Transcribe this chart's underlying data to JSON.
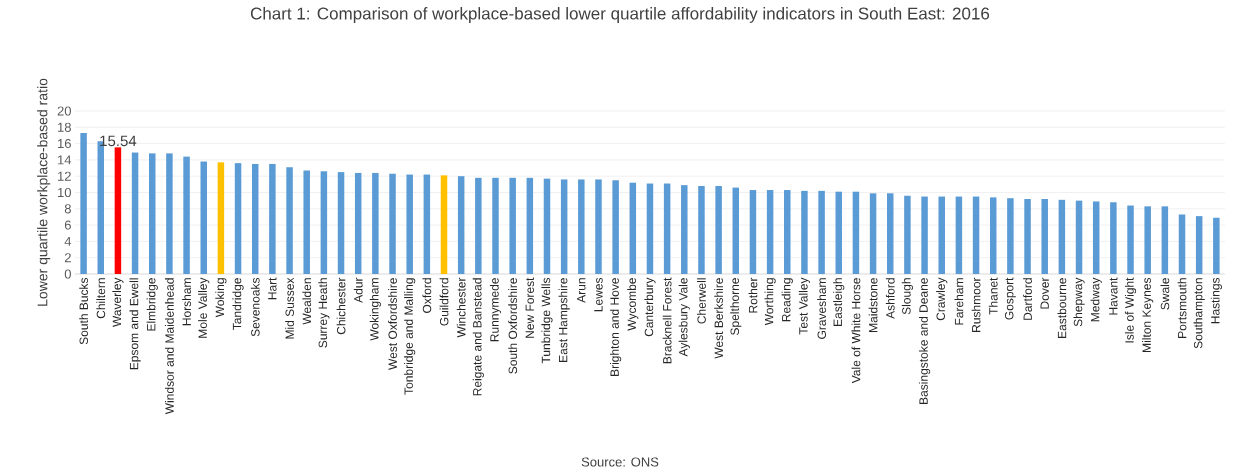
{
  "chart_data": {
    "type": "bar",
    "title": "Chart 1: Comparison of workplace-based lower quartile affordability indicators in South East: 2016",
    "ylabel": "Lower quartile workplace-based ratio",
    "categories": [
      "South Bucks",
      "Chiltern",
      "Waverley",
      "Epsom and Ewell",
      "Elmbridge",
      "Windsor and Maidenhead",
      "Horsham",
      "Mole Valley",
      "Woking",
      "Tandridge",
      "Sevenoaks",
      "Hart",
      "Mid Sussex",
      "Wealden",
      "Surrey Heath",
      "Chichester",
      "Adur",
      "Wokingham",
      "West Oxfordshire",
      "Tonbridge and Malling",
      "Oxford",
      "Guildford",
      "Winchester",
      "Reigate and Banstead",
      "Runnymede",
      "South Oxfordshire",
      "New Forest",
      "Tunbridge Wells",
      "East Hampshire",
      "Arun",
      "Lewes",
      "Brighton and Hove",
      "Wycombe",
      "Canterbury",
      "Bracknell Forest",
      "Aylesbury Vale",
      "Cherwell",
      "West Berkshire",
      "Spelthorne",
      "Rother",
      "Worthing",
      "Reading",
      "Test Valley",
      "Gravesham",
      "Eastleigh",
      "Vale of White Horse",
      "Maidstone",
      "Ashford",
      "Slough",
      "Basingstoke and Deane",
      "Crawley",
      "Fareham",
      "Rushmoor",
      "Thanet",
      "Gosport",
      "Dartford",
      "Dover",
      "Eastbourne",
      "Shepway",
      "Medway",
      "Havant",
      "Isle of Wight",
      "Milton Keynes",
      "Swale",
      "Portsmouth",
      "Southampton",
      "Hastings"
    ],
    "values": [
      17.3,
      16.3,
      15.54,
      14.9,
      14.8,
      14.8,
      14.4,
      13.8,
      13.7,
      13.6,
      13.5,
      13.5,
      13.1,
      12.7,
      12.6,
      12.5,
      12.4,
      12.4,
      12.3,
      12.2,
      12.2,
      12.1,
      12.0,
      11.8,
      11.8,
      11.8,
      11.8,
      11.7,
      11.6,
      11.6,
      11.6,
      11.5,
      11.2,
      11.1,
      11.1,
      10.9,
      10.8,
      10.8,
      10.6,
      10.3,
      10.3,
      10.3,
      10.2,
      10.2,
      10.1,
      10.1,
      9.9,
      9.9,
      9.6,
      9.5,
      9.5,
      9.5,
      9.5,
      9.4,
      9.3,
      9.2,
      9.2,
      9.1,
      9.0,
      8.9,
      8.8,
      8.4,
      8.3,
      8.3,
      7.3,
      7.1,
      6.9
    ],
    "colors": [
      "#5b9bd5",
      "#5b9bd5",
      "#ff0000",
      "#5b9bd5",
      "#5b9bd5",
      "#5b9bd5",
      "#5b9bd5",
      "#5b9bd5",
      "#ffc000",
      "#5b9bd5",
      "#5b9bd5",
      "#5b9bd5",
      "#5b9bd5",
      "#5b9bd5",
      "#5b9bd5",
      "#5b9bd5",
      "#5b9bd5",
      "#5b9bd5",
      "#5b9bd5",
      "#5b9bd5",
      "#5b9bd5",
      "#ffc000",
      "#5b9bd5",
      "#5b9bd5",
      "#5b9bd5",
      "#5b9bd5",
      "#5b9bd5",
      "#5b9bd5",
      "#5b9bd5",
      "#5b9bd5",
      "#5b9bd5",
      "#5b9bd5",
      "#5b9bd5",
      "#5b9bd5",
      "#5b9bd5",
      "#5b9bd5",
      "#5b9bd5",
      "#5b9bd5",
      "#5b9bd5",
      "#5b9bd5",
      "#5b9bd5",
      "#5b9bd5",
      "#5b9bd5",
      "#5b9bd5",
      "#5b9bd5",
      "#5b9bd5",
      "#5b9bd5",
      "#5b9bd5",
      "#5b9bd5",
      "#5b9bd5",
      "#5b9bd5",
      "#5b9bd5",
      "#5b9bd5",
      "#5b9bd5",
      "#5b9bd5",
      "#5b9bd5",
      "#5b9bd5",
      "#5b9bd5",
      "#5b9bd5",
      "#5b9bd5",
      "#5b9bd5",
      "#5b9bd5",
      "#5b9bd5",
      "#5b9bd5",
      "#5b9bd5",
      "#5b9bd5",
      "#5b9bd5"
    ],
    "value_labels": [
      null,
      null,
      "15.54",
      null,
      null,
      null,
      null,
      null,
      null,
      null,
      null,
      null,
      null,
      null,
      null,
      null,
      null,
      null,
      null,
      null,
      null,
      null,
      null,
      null,
      null,
      null,
      null,
      null,
      null,
      null,
      null,
      null,
      null,
      null,
      null,
      null,
      null,
      null,
      null,
      null,
      null,
      null,
      null,
      null,
      null,
      null,
      null,
      null,
      null,
      null,
      null,
      null,
      null,
      null,
      null,
      null,
      null,
      null,
      null,
      null,
      null,
      null,
      null,
      null,
      null,
      null,
      null
    ],
    "ylim": [
      0,
      20
    ],
    "yticks": [
      0,
      2,
      4,
      6,
      8,
      10,
      12,
      14,
      16,
      18,
      20
    ],
    "grid": "y",
    "annotations": [
      "Source: ONS"
    ]
  }
}
